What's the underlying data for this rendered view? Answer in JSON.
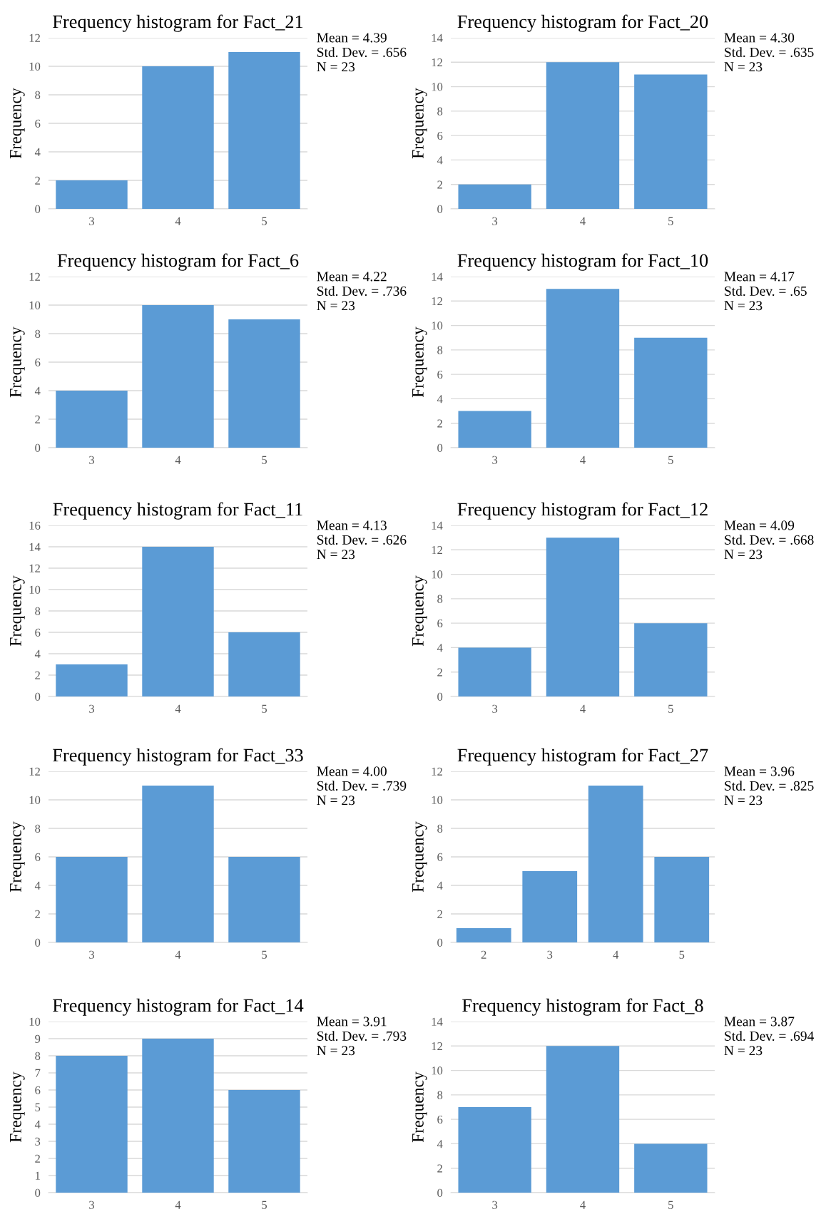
{
  "chart_data": [
    {
      "type": "bar",
      "title": "Frequency histogram for Fact_21",
      "ylabel": "Frequency",
      "categories": [
        "3",
        "4",
        "5"
      ],
      "values": [
        2,
        10,
        11
      ],
      "color": "#5b9bd5",
      "ylim": [
        0,
        12
      ],
      "yticks": [
        0,
        2,
        4,
        6,
        8,
        10,
        12
      ],
      "grid": "y",
      "annotations": [
        "Mean = 4.39",
        "Std. Dev. = .656",
        "N = 23"
      ]
    },
    {
      "type": "bar",
      "title": "Frequency histogram for Fact_20",
      "ylabel": "Frequency",
      "categories": [
        "3",
        "4",
        "5"
      ],
      "values": [
        2,
        12,
        11
      ],
      "color": "#5b9bd5",
      "ylim": [
        0,
        14
      ],
      "yticks": [
        0,
        2,
        4,
        6,
        8,
        10,
        12,
        14
      ],
      "grid": "y",
      "annotations": [
        "Mean = 4.30",
        "Std. Dev. = .635",
        "N = 23"
      ]
    },
    {
      "type": "bar",
      "title": "Frequency histogram for Fact_6",
      "ylabel": "Frequency",
      "categories": [
        "3",
        "4",
        "5"
      ],
      "values": [
        4,
        10,
        9
      ],
      "color": "#5b9bd5",
      "ylim": [
        0,
        12
      ],
      "yticks": [
        0,
        2,
        4,
        6,
        8,
        10,
        12
      ],
      "grid": "y",
      "annotations": [
        "Mean = 4.22",
        "Std. Dev. = .736",
        "N = 23"
      ]
    },
    {
      "type": "bar",
      "title": "Frequency histogram for Fact_10",
      "ylabel": "Frequency",
      "categories": [
        "3",
        "4",
        "5"
      ],
      "values": [
        3,
        13,
        9
      ],
      "color": "#5b9bd5",
      "ylim": [
        0,
        14
      ],
      "yticks": [
        0,
        2,
        4,
        6,
        8,
        10,
        12,
        14
      ],
      "grid": "y",
      "annotations": [
        "Mean = 4.17",
        "Std. Dev. = .65",
        "N = 23"
      ]
    },
    {
      "type": "bar",
      "title": "Frequency histogram for Fact_11",
      "ylabel": "Frequency",
      "categories": [
        "3",
        "4",
        "5"
      ],
      "values": [
        3,
        14,
        6
      ],
      "color": "#5b9bd5",
      "ylim": [
        0,
        16
      ],
      "yticks": [
        0,
        2,
        4,
        6,
        8,
        10,
        12,
        14,
        16
      ],
      "grid": "y",
      "annotations": [
        "Mean = 4.13",
        "Std. Dev. = .626",
        "N = 23"
      ]
    },
    {
      "type": "bar",
      "title": "Frequency histogram for Fact_12",
      "ylabel": "Frequency",
      "categories": [
        "3",
        "4",
        "5"
      ],
      "values": [
        4,
        13,
        6
      ],
      "color": "#5b9bd5",
      "ylim": [
        0,
        14
      ],
      "yticks": [
        0,
        2,
        4,
        6,
        8,
        10,
        12,
        14
      ],
      "grid": "y",
      "annotations": [
        "Mean = 4.09",
        "Std. Dev. = .668",
        "N = 23"
      ]
    },
    {
      "type": "bar",
      "title": "Frequency histogram for Fact_33",
      "ylabel": "Frequency",
      "categories": [
        "3",
        "4",
        "5"
      ],
      "values": [
        6,
        11,
        6
      ],
      "color": "#5b9bd5",
      "ylim": [
        0,
        12
      ],
      "yticks": [
        0,
        2,
        4,
        6,
        8,
        10,
        12
      ],
      "grid": "y",
      "annotations": [
        "Mean = 4.00",
        "Std. Dev. = .739",
        "N = 23"
      ]
    },
    {
      "type": "bar",
      "title": "Frequency histogram for Fact_27",
      "ylabel": "Frequency",
      "categories": [
        "2",
        "3",
        "4",
        "5"
      ],
      "values": [
        1,
        5,
        11,
        6
      ],
      "color": "#5b9bd5",
      "ylim": [
        0,
        12
      ],
      "yticks": [
        0,
        2,
        4,
        6,
        8,
        10,
        12
      ],
      "grid": "y",
      "annotations": [
        "Mean = 3.96",
        "Std. Dev. = .825",
        "N = 23"
      ]
    },
    {
      "type": "bar",
      "title": "Frequency histogram for Fact_14",
      "ylabel": "Frequency",
      "categories": [
        "3",
        "4",
        "5"
      ],
      "values": [
        8,
        9,
        6
      ],
      "color": "#5b9bd5",
      "ylim": [
        0,
        10
      ],
      "yticks": [
        0,
        1,
        2,
        3,
        4,
        5,
        6,
        7,
        8,
        9,
        10
      ],
      "grid": "y",
      "annotations": [
        "Mean = 3.91",
        "Std. Dev. = .793",
        "N = 23"
      ]
    },
    {
      "type": "bar",
      "title": "Frequency histogram for Fact_8",
      "ylabel": "Frequency",
      "categories": [
        "3",
        "4",
        "5"
      ],
      "values": [
        7,
        12,
        4
      ],
      "color": "#5b9bd5",
      "ylim": [
        0,
        14
      ],
      "yticks": [
        0,
        2,
        4,
        6,
        8,
        10,
        12,
        14
      ],
      "grid": "y",
      "annotations": [
        "Mean = 3.87",
        "Std. Dev. = .694",
        "N = 23"
      ]
    }
  ]
}
